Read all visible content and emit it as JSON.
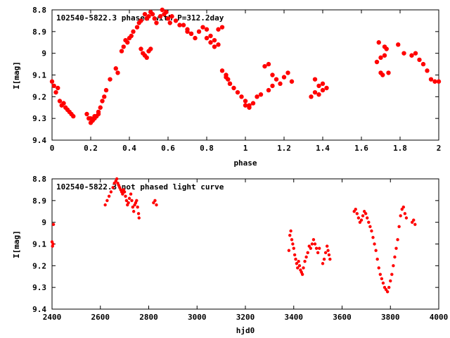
{
  "chart_data": [
    {
      "type": "scatter",
      "title": "102540-5822.3 phased with P=312.2day",
      "xlabel": "phase",
      "ylabel": "I[mag]",
      "xlim": [
        0,
        2
      ],
      "ylim": [
        9.4,
        8.8
      ],
      "y_inverted": true,
      "xticks": [
        "0",
        "0.2",
        "0.4",
        "0.6",
        "0.8",
        "1",
        "1.2",
        "1.4",
        "1.6",
        "1.8",
        "2"
      ],
      "yticks": [
        "8.8",
        "8.9",
        "9",
        "9.1",
        "9.2",
        "9.3",
        "9.4"
      ],
      "color": "#ff0000",
      "series": [
        {
          "x": [
            0.0,
            0.01,
            0.02,
            0.03,
            0.04,
            0.05,
            0.06,
            0.07,
            0.08,
            0.09,
            0.1,
            0.11,
            0.18,
            0.19,
            0.2,
            0.21,
            0.22,
            0.23,
            0.24,
            0.25,
            0.26,
            0.27,
            0.28,
            0.3,
            0.33,
            0.34,
            0.36,
            0.37,
            0.38,
            0.39,
            0.4,
            0.41,
            0.42,
            0.44,
            0.45,
            0.46,
            0.48,
            0.49,
            0.5,
            0.51,
            0.52,
            0.53,
            0.54,
            0.56,
            0.57,
            0.58,
            0.59,
            0.6,
            0.61,
            0.62,
            0.64,
            0.66,
            0.68,
            0.7,
            0.72,
            0.74,
            0.76,
            0.78,
            0.8,
            0.82,
            0.84,
            0.86,
            0.88,
            0.9,
            0.92,
            0.94,
            0.96,
            0.98,
            1.0,
            1.02,
            1.04,
            1.06,
            1.08,
            1.12,
            1.14,
            1.16,
            1.18,
            1.2,
            1.22,
            1.24,
            1.34,
            1.36,
            1.38,
            1.4,
            1.42,
            1.69,
            1.7,
            1.71,
            1.72,
            1.73,
            1.74,
            1.79,
            1.82,
            1.86,
            1.88,
            1.9,
            1.92,
            1.94,
            1.96,
            1.98,
            2.0
          ],
          "y": [
            9.13,
            9.15,
            9.18,
            9.16,
            9.22,
            9.24,
            9.23,
            9.25,
            9.26,
            9.27,
            9.28,
            9.29,
            9.28,
            9.3,
            9.32,
            9.31,
            9.3,
            9.29,
            9.27,
            9.25,
            9.22,
            9.2,
            9.17,
            9.12,
            9.07,
            9.09,
            8.99,
            8.97,
            8.94,
            8.95,
            8.93,
            8.92,
            8.9,
            8.88,
            8.86,
            8.85,
            8.82,
            8.84,
            8.83,
            8.81,
            8.82,
            8.84,
            8.86,
            8.83,
            8.8,
            8.82,
            8.81,
            8.84,
            8.86,
            8.83,
            8.85,
            8.87,
            8.87,
            8.89,
            8.91,
            8.93,
            8.9,
            8.88,
            8.89,
            8.92,
            8.94,
            8.96,
            9.08,
            9.11,
            9.14,
            9.16,
            9.18,
            9.2,
            9.22,
            9.24,
            9.23,
            9.2,
            9.19,
            9.17,
            9.15,
            9.12,
            9.14,
            9.11,
            9.09,
            9.13,
            9.2,
            9.18,
            9.15,
            9.14,
            9.16,
            8.95,
            9.09,
            9.1,
            8.97,
            8.98,
            9.09,
            8.96,
            9.0,
            9.01,
            9.0,
            9.03,
            9.05,
            9.08,
            9.12,
            9.13,
            9.13
          ]
        },
        {
          "x": [
            0.2,
            0.22,
            0.24,
            0.46,
            0.47,
            0.48,
            0.49,
            0.5,
            0.51,
            0.7,
            0.72,
            0.8,
            0.82,
            0.84,
            0.86,
            0.88,
            0.9,
            0.91,
            0.92,
            1.1,
            1.12,
            1.14,
            1.0,
            1.02,
            1.4,
            1.38,
            1.36,
            1.7,
            1.72,
            1.68
          ],
          "y": [
            9.3,
            9.29,
            9.28,
            8.98,
            9.0,
            9.01,
            9.02,
            8.99,
            8.98,
            8.9,
            8.91,
            8.93,
            8.95,
            8.97,
            8.89,
            8.88,
            9.1,
            9.12,
            9.14,
            9.06,
            9.05,
            9.1,
            9.24,
            9.25,
            9.17,
            9.19,
            9.12,
            9.02,
            9.01,
            9.04
          ]
        }
      ]
    },
    {
      "type": "scatter",
      "title": "102540-5822.3 not phased light curve",
      "xlabel": "hjd0",
      "ylabel": "I[mag]",
      "xlim": [
        2400,
        4000
      ],
      "ylim": [
        9.4,
        8.8
      ],
      "y_inverted": true,
      "xticks": [
        "2400",
        "2600",
        "2800",
        "3000",
        "3200",
        "3400",
        "3600",
        "3800",
        "4000"
      ],
      "yticks": [
        "8.8",
        "8.9",
        "9",
        "9.1",
        "9.2",
        "9.3",
        "9.4"
      ],
      "color": "#ff0000",
      "series": [
        {
          "x": [
            2400,
            2402,
            2404,
            2406,
            2620,
            2628,
            2636,
            2644,
            2652,
            2658,
            2664,
            2668,
            2672,
            2676,
            2680,
            2684,
            2688,
            2692,
            2696,
            2700,
            2704,
            2708,
            2712,
            2716,
            2720,
            2726,
            2730,
            2734,
            2738,
            2742,
            2746,
            2750,
            2754,
            2758,
            2760,
            2820,
            2826,
            2832,
            3380,
            3384,
            3388,
            3392,
            3396,
            3400,
            3404,
            3408,
            3412,
            3416,
            3420,
            3424,
            3428,
            3432,
            3436,
            3440,
            3446,
            3452,
            3458,
            3464,
            3470,
            3476,
            3482,
            3488,
            3494,
            3500,
            3506,
            3520,
            3526,
            3532,
            3538,
            3542,
            3546,
            3550,
            3650,
            3656,
            3662,
            3668,
            3674,
            3680,
            3686,
            3692,
            3698,
            3704,
            3710,
            3716,
            3722,
            3728,
            3734,
            3740,
            3746,
            3752,
            3758,
            3764,
            3770,
            3776,
            3782,
            3788,
            3794,
            3800,
            3806,
            3812,
            3818,
            3824,
            3830,
            3836,
            3842,
            3848,
            3854,
            3860,
            3866,
            3890,
            3896,
            3902
          ],
          "y": [
            9.09,
            9.11,
            9.1,
            9.01,
            8.92,
            8.9,
            8.88,
            8.86,
            8.84,
            8.82,
            8.81,
            8.8,
            8.82,
            8.83,
            8.84,
            8.85,
            8.86,
            8.87,
            8.85,
            8.86,
            8.88,
            8.9,
            8.92,
            8.91,
            8.89,
            8.87,
            8.9,
            8.93,
            8.95,
            8.92,
            8.91,
            8.9,
            8.93,
            8.96,
            8.98,
            8.91,
            8.9,
            8.92,
            9.13,
            9.06,
            9.04,
            9.08,
            9.1,
            9.12,
            9.15,
            9.17,
            9.19,
            9.21,
            9.18,
            9.2,
            9.22,
            9.23,
            9.24,
            9.21,
            9.18,
            9.16,
            9.14,
            9.11,
            9.12,
            9.1,
            9.08,
            9.1,
            9.12,
            9.14,
            9.12,
            9.19,
            9.17,
            9.14,
            9.11,
            9.13,
            9.15,
            9.17,
            8.95,
            8.94,
            8.96,
            8.98,
            9.0,
            8.99,
            8.97,
            8.95,
            8.96,
            8.98,
            9.0,
            9.02,
            9.04,
            9.07,
            9.1,
            9.13,
            9.17,
            9.21,
            9.24,
            9.26,
            9.28,
            9.3,
            9.31,
            9.32,
            9.3,
            9.27,
            9.24,
            9.2,
            9.16,
            9.12,
            9.08,
            9.02,
            8.97,
            8.94,
            8.93,
            8.96,
            8.98,
            9.0,
            8.99,
            9.01
          ]
        }
      ]
    }
  ]
}
